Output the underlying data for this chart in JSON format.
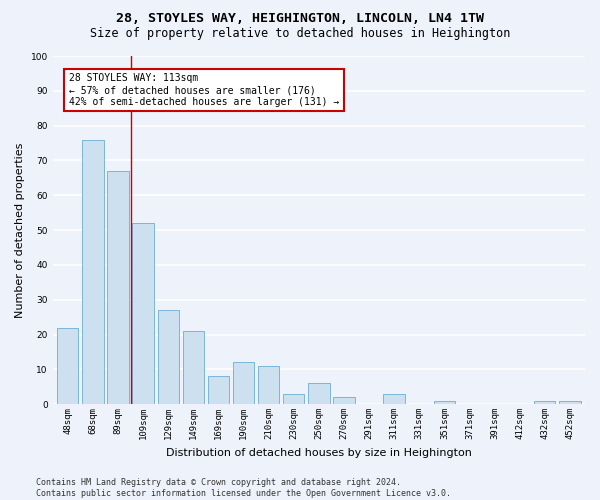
{
  "title": "28, STOYLES WAY, HEIGHINGTON, LINCOLN, LN4 1TW",
  "subtitle": "Size of property relative to detached houses in Heighington",
  "xlabel": "Distribution of detached houses by size in Heighington",
  "ylabel": "Number of detached properties",
  "categories": [
    "48sqm",
    "68sqm",
    "89sqm",
    "109sqm",
    "129sqm",
    "149sqm",
    "169sqm",
    "190sqm",
    "210sqm",
    "230sqm",
    "250sqm",
    "270sqm",
    "291sqm",
    "311sqm",
    "331sqm",
    "351sqm",
    "371sqm",
    "391sqm",
    "412sqm",
    "432sqm",
    "452sqm"
  ],
  "values": [
    22,
    76,
    67,
    52,
    27,
    21,
    8,
    12,
    11,
    3,
    6,
    2,
    0,
    3,
    0,
    1,
    0,
    0,
    0,
    1,
    1
  ],
  "bar_color": "#cce0f0",
  "bar_edge_color": "#6aaed6",
  "bar_width": 0.85,
  "ylim": [
    0,
    100
  ],
  "yticks": [
    0,
    10,
    20,
    30,
    40,
    50,
    60,
    70,
    80,
    90,
    100
  ],
  "vline_x": 2.5,
  "vline_color": "#cc0000",
  "annotation_line1": "28 STOYLES WAY: 113sqm",
  "annotation_line2": "← 57% of detached houses are smaller (176)",
  "annotation_line3": "42% of semi-detached houses are larger (131) →",
  "annotation_box_color": "#ffffff",
  "annotation_box_edge_color": "#cc0000",
  "footer_line1": "Contains HM Land Registry data © Crown copyright and database right 2024.",
  "footer_line2": "Contains public sector information licensed under the Open Government Licence v3.0.",
  "background_color": "#eef2fa",
  "plot_background_color": "#eef2fa",
  "grid_color": "#ffffff",
  "title_fontsize": 9.5,
  "subtitle_fontsize": 8.5,
  "axis_label_fontsize": 8,
  "tick_fontsize": 6.5,
  "annotation_fontsize": 7,
  "footer_fontsize": 6
}
